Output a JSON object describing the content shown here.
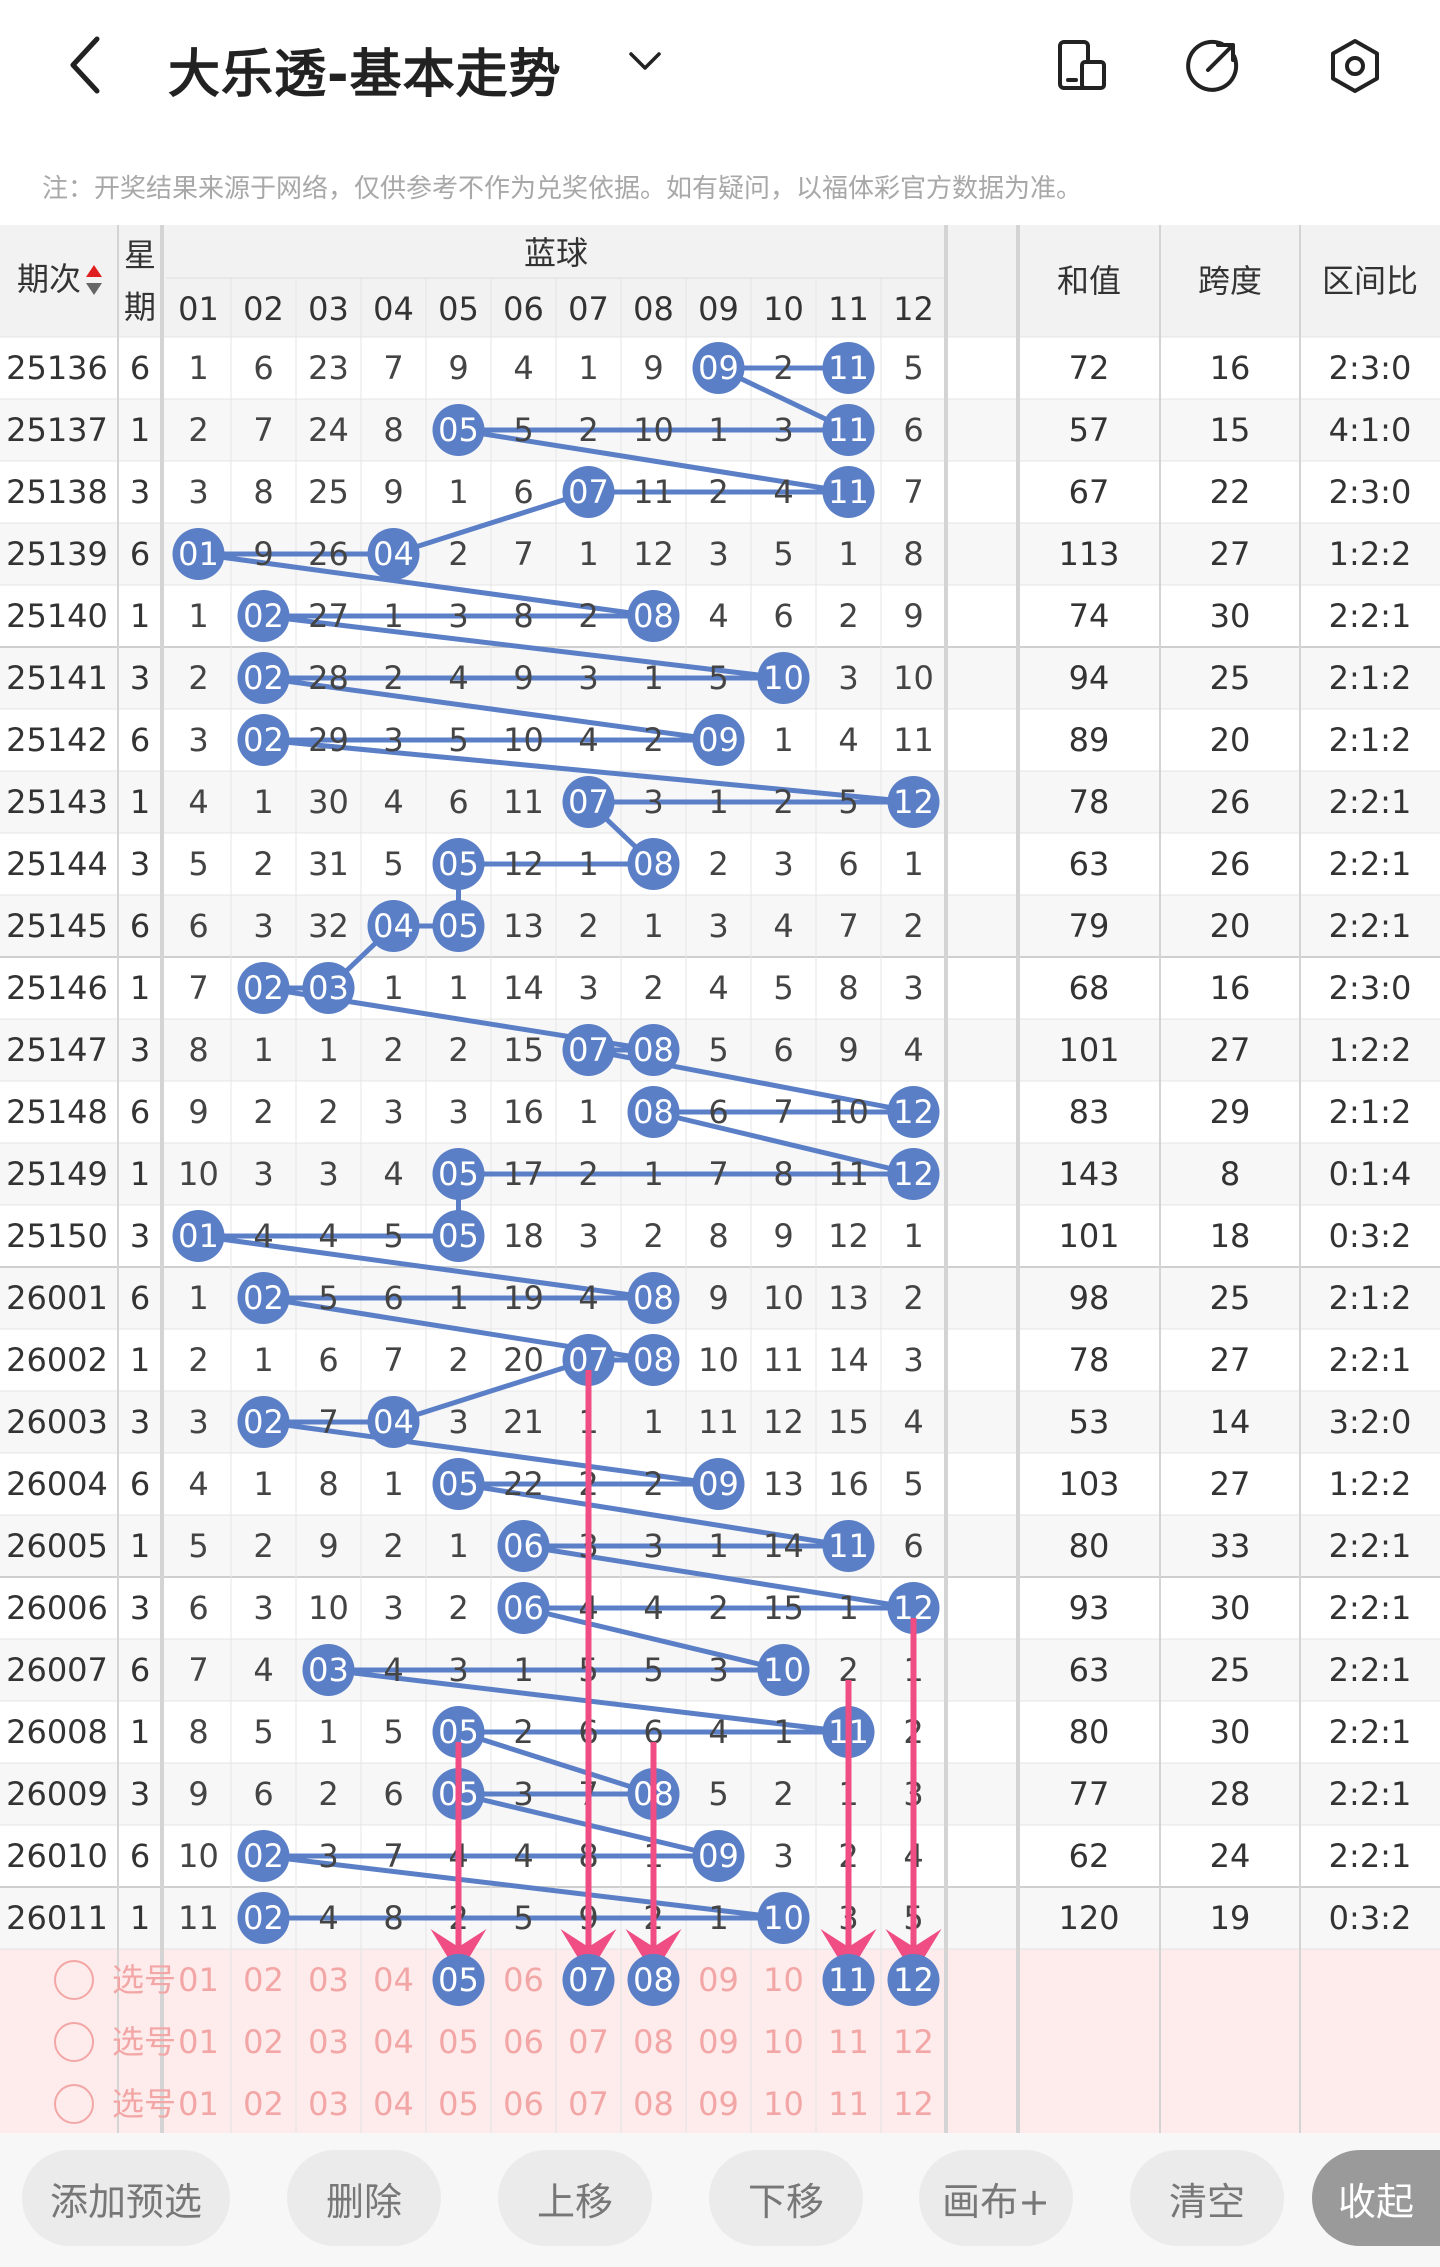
{
  "header": {
    "title": "大乐透-基本走势",
    "back_icon": "chevron-left-icon",
    "dropdown_icon": "chevron-down-icon",
    "icons": [
      "device-icon",
      "share-icon",
      "settings-icon"
    ]
  },
  "notice": "注：开奖结果来源于网络，仅供参考不作为兑奖依据。如有疑问，以福体彩官方数据为准。",
  "columns": {
    "period": "期次",
    "week": "星期",
    "blue_group": "蓝球",
    "blue_numbers": [
      "01",
      "02",
      "03",
      "04",
      "05",
      "06",
      "07",
      "08",
      "09",
      "10",
      "11",
      "12"
    ],
    "sum": "和值",
    "span": "跨度",
    "ratio": "区间比"
  },
  "rows": [
    {
      "period": "25136",
      "week": "6",
      "cells": [
        "1",
        "6",
        "23",
        "7",
        "9",
        "4",
        "1",
        "9",
        "09",
        "2",
        "11",
        "5"
      ],
      "hits": [
        9,
        11
      ],
      "sum": "72",
      "span": "16",
      "ratio": "2:3:0"
    },
    {
      "period": "25137",
      "week": "1",
      "cells": [
        "2",
        "7",
        "24",
        "8",
        "05",
        "5",
        "2",
        "10",
        "1",
        "3",
        "11",
        "6"
      ],
      "hits": [
        5,
        11
      ],
      "sum": "57",
      "span": "15",
      "ratio": "4:1:0"
    },
    {
      "period": "25138",
      "week": "3",
      "cells": [
        "3",
        "8",
        "25",
        "9",
        "1",
        "6",
        "07",
        "11",
        "2",
        "4",
        "11",
        "7"
      ],
      "hits": [
        7,
        11
      ],
      "sum": "67",
      "span": "22",
      "ratio": "2:3:0"
    },
    {
      "period": "25139",
      "week": "6",
      "cells": [
        "01",
        "9",
        "26",
        "04",
        "2",
        "7",
        "1",
        "12",
        "3",
        "5",
        "1",
        "8"
      ],
      "hits": [
        1,
        4
      ],
      "sum": "113",
      "span": "27",
      "ratio": "1:2:2"
    },
    {
      "period": "25140",
      "week": "1",
      "cells": [
        "1",
        "02",
        "27",
        "1",
        "3",
        "8",
        "2",
        "08",
        "4",
        "6",
        "2",
        "9"
      ],
      "hits": [
        2,
        8
      ],
      "sum": "74",
      "span": "30",
      "ratio": "2:2:1"
    },
    {
      "period": "25141",
      "week": "3",
      "cells": [
        "2",
        "02",
        "28",
        "2",
        "4",
        "9",
        "3",
        "1",
        "5",
        "10",
        "3",
        "10"
      ],
      "hits": [
        2,
        10
      ],
      "sum": "94",
      "span": "25",
      "ratio": "2:1:2"
    },
    {
      "period": "25142",
      "week": "6",
      "cells": [
        "3",
        "02",
        "29",
        "3",
        "5",
        "10",
        "4",
        "2",
        "09",
        "1",
        "4",
        "11"
      ],
      "hits": [
        2,
        9
      ],
      "sum": "89",
      "span": "20",
      "ratio": "2:1:2"
    },
    {
      "period": "25143",
      "week": "1",
      "cells": [
        "4",
        "1",
        "30",
        "4",
        "6",
        "11",
        "07",
        "3",
        "1",
        "2",
        "5",
        "12"
      ],
      "hits": [
        7,
        12
      ],
      "sum": "78",
      "span": "26",
      "ratio": "2:2:1"
    },
    {
      "period": "25144",
      "week": "3",
      "cells": [
        "5",
        "2",
        "31",
        "5",
        "05",
        "12",
        "1",
        "08",
        "2",
        "3",
        "6",
        "1"
      ],
      "hits": [
        5,
        8
      ],
      "sum": "63",
      "span": "26",
      "ratio": "2:2:1"
    },
    {
      "period": "25145",
      "week": "6",
      "cells": [
        "6",
        "3",
        "32",
        "04",
        "05",
        "13",
        "2",
        "1",
        "3",
        "4",
        "7",
        "2"
      ],
      "hits": [
        4,
        5
      ],
      "sum": "79",
      "span": "20",
      "ratio": "2:2:1"
    },
    {
      "period": "25146",
      "week": "1",
      "cells": [
        "7",
        "02",
        "03",
        "1",
        "1",
        "14",
        "3",
        "2",
        "4",
        "5",
        "8",
        "3"
      ],
      "hits": [
        2,
        3
      ],
      "sum": "68",
      "span": "16",
      "ratio": "2:3:0"
    },
    {
      "period": "25147",
      "week": "3",
      "cells": [
        "8",
        "1",
        "1",
        "2",
        "2",
        "15",
        "07",
        "08",
        "5",
        "6",
        "9",
        "4"
      ],
      "hits": [
        7,
        8
      ],
      "sum": "101",
      "span": "27",
      "ratio": "1:2:2"
    },
    {
      "period": "25148",
      "week": "6",
      "cells": [
        "9",
        "2",
        "2",
        "3",
        "3",
        "16",
        "1",
        "08",
        "6",
        "7",
        "10",
        "12"
      ],
      "hits": [
        8,
        12
      ],
      "sum": "83",
      "span": "29",
      "ratio": "2:1:2"
    },
    {
      "period": "25149",
      "week": "1",
      "cells": [
        "10",
        "3",
        "3",
        "4",
        "05",
        "17",
        "2",
        "1",
        "7",
        "8",
        "11",
        "12"
      ],
      "hits": [
        5,
        12
      ],
      "sum": "143",
      "span": "8",
      "ratio": "0:1:4"
    },
    {
      "period": "25150",
      "week": "3",
      "cells": [
        "01",
        "4",
        "4",
        "5",
        "05",
        "18",
        "3",
        "2",
        "8",
        "9",
        "12",
        "1"
      ],
      "hits": [
        1,
        5
      ],
      "sum": "101",
      "span": "18",
      "ratio": "0:3:2"
    },
    {
      "period": "26001",
      "week": "6",
      "cells": [
        "1",
        "02",
        "5",
        "6",
        "1",
        "19",
        "4",
        "08",
        "9",
        "10",
        "13",
        "2"
      ],
      "hits": [
        2,
        8
      ],
      "sum": "98",
      "span": "25",
      "ratio": "2:1:2"
    },
    {
      "period": "26002",
      "week": "1",
      "cells": [
        "2",
        "1",
        "6",
        "7",
        "2",
        "20",
        "07",
        "08",
        "10",
        "11",
        "14",
        "3"
      ],
      "hits": [
        7,
        8
      ],
      "sum": "78",
      "span": "27",
      "ratio": "2:2:1"
    },
    {
      "period": "26003",
      "week": "3",
      "cells": [
        "3",
        "02",
        "7",
        "04",
        "3",
        "21",
        "1",
        "1",
        "11",
        "12",
        "15",
        "4"
      ],
      "hits": [
        2,
        4
      ],
      "sum": "53",
      "span": "14",
      "ratio": "3:2:0"
    },
    {
      "period": "26004",
      "week": "6",
      "cells": [
        "4",
        "1",
        "8",
        "1",
        "05",
        "22",
        "2",
        "2",
        "09",
        "13",
        "16",
        "5"
      ],
      "hits": [
        5,
        9
      ],
      "sum": "103",
      "span": "27",
      "ratio": "1:2:2"
    },
    {
      "period": "26005",
      "week": "1",
      "cells": [
        "5",
        "2",
        "9",
        "2",
        "1",
        "06",
        "3",
        "3",
        "1",
        "14",
        "11",
        "6"
      ],
      "hits": [
        6,
        11
      ],
      "sum": "80",
      "span": "33",
      "ratio": "2:2:1"
    },
    {
      "period": "26006",
      "week": "3",
      "cells": [
        "6",
        "3",
        "10",
        "3",
        "2",
        "06",
        "4",
        "4",
        "2",
        "15",
        "1",
        "12"
      ],
      "hits": [
        6,
        12
      ],
      "sum": "93",
      "span": "30",
      "ratio": "2:2:1"
    },
    {
      "period": "26007",
      "week": "6",
      "cells": [
        "7",
        "4",
        "03",
        "4",
        "3",
        "1",
        "5",
        "5",
        "3",
        "10",
        "2",
        "1"
      ],
      "hits": [
        3,
        10
      ],
      "sum": "63",
      "span": "25",
      "ratio": "2:2:1"
    },
    {
      "period": "26008",
      "week": "1",
      "cells": [
        "8",
        "5",
        "1",
        "5",
        "05",
        "2",
        "6",
        "6",
        "4",
        "1",
        "11",
        "2"
      ],
      "hits": [
        5,
        11
      ],
      "sum": "80",
      "span": "30",
      "ratio": "2:2:1"
    },
    {
      "period": "26009",
      "week": "3",
      "cells": [
        "9",
        "6",
        "2",
        "6",
        "05",
        "3",
        "7",
        "08",
        "5",
        "2",
        "1",
        "3"
      ],
      "hits": [
        5,
        8
      ],
      "sum": "77",
      "span": "28",
      "ratio": "2:2:1"
    },
    {
      "period": "26010",
      "week": "6",
      "cells": [
        "10",
        "02",
        "3",
        "7",
        "4",
        "4",
        "8",
        "1",
        "09",
        "3",
        "2",
        "4"
      ],
      "hits": [
        2,
        9
      ],
      "sum": "62",
      "span": "24",
      "ratio": "2:2:1"
    },
    {
      "period": "26011",
      "week": "1",
      "cells": [
        "11",
        "02",
        "4",
        "8",
        "2",
        "5",
        "9",
        "2",
        "1",
        "10",
        "3",
        "5"
      ],
      "hits": [
        2,
        10
      ],
      "sum": "120",
      "span": "19",
      "ratio": "0:3:2"
    }
  ],
  "select_rows": [
    {
      "label": "选号",
      "picked": [
        5,
        7,
        8,
        11,
        12
      ]
    },
    {
      "label": "选号",
      "picked": []
    },
    {
      "label": "选号",
      "picked": []
    }
  ],
  "arrows_to_columns": [
    5,
    7,
    8,
    11,
    12
  ],
  "toolbar": {
    "add_preselect": "添加预选",
    "delete": "删除",
    "move_up": "上移",
    "move_down": "下移",
    "canvas": "画布+",
    "clear": "清空",
    "collapse": "收起"
  },
  "colors": {
    "ball": "#5b7fc7",
    "line": "#5b7fc7",
    "arrow": "#ef4d84",
    "select_text": "#f3a6a6",
    "select_bg": "#fdeceb"
  }
}
